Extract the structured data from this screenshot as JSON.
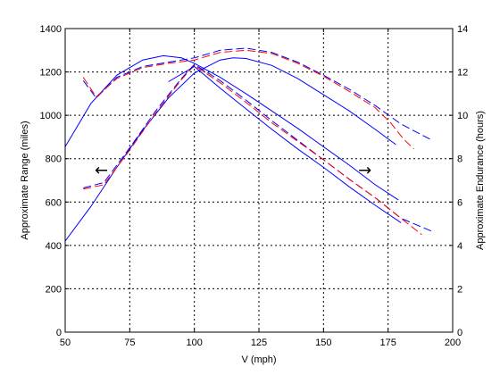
{
  "chart_data": {
    "type": "line",
    "title": "",
    "xlabel": "V (mph)",
    "ylabel_left": "Approximate Range (miles)",
    "ylabel_right": "Approximate Endurance (hours)",
    "xlim": [
      50,
      200
    ],
    "ylim_left": [
      0,
      1400
    ],
    "ylim_right": [
      0,
      14
    ],
    "x_ticks": [
      50,
      75,
      100,
      125,
      150,
      175,
      200
    ],
    "y_ticks_left": [
      0,
      200,
      400,
      600,
      800,
      1000,
      1200,
      1400
    ],
    "y_ticks_right": [
      0,
      2,
      4,
      6,
      8,
      10,
      12,
      14
    ],
    "grid": true,
    "colors": {
      "blue": "#0000ff",
      "red": "#ff0000",
      "axis": "#000000",
      "grid": "#000000"
    },
    "annotations": [
      {
        "text": "←",
        "points_to": "left axis (range)",
        "at": [
          64,
          740
        ]
      },
      {
        "text": "→",
        "points_to": "right axis (endurance)",
        "at": [
          166,
          740
        ]
      }
    ],
    "series": [
      {
        "axis": "left",
        "color": "#0000ff",
        "style": "solid",
        "x": [
          50,
          60,
          70,
          80,
          88,
          95,
          100,
          110,
          120,
          130,
          140,
          150,
          160,
          170,
          179
        ],
        "y": [
          855,
          1055,
          1185,
          1255,
          1275,
          1265,
          1240,
          1175,
          1100,
          1020,
          940,
          855,
          770,
          680,
          610
        ]
      },
      {
        "axis": "left",
        "color": "#0000ff",
        "style": "solid",
        "x": [
          50,
          60,
          70,
          80,
          90,
          100,
          110,
          115,
          120,
          130,
          140,
          150,
          160,
          170,
          178
        ],
        "y": [
          420,
          580,
          760,
          930,
          1080,
          1195,
          1255,
          1265,
          1262,
          1230,
          1170,
          1095,
          1020,
          935,
          865
        ]
      },
      {
        "axis": "left",
        "color": "#0000ff",
        "style": "dashed",
        "x": [
          57,
          62,
          70,
          80,
          90,
          100,
          110,
          120,
          130,
          140,
          150,
          160,
          170,
          180,
          192
        ],
        "y": [
          1160,
          1080,
          1175,
          1225,
          1245,
          1265,
          1300,
          1310,
          1290,
          1245,
          1185,
          1120,
          1045,
          960,
          885
        ]
      },
      {
        "axis": "left",
        "color": "#0000ff",
        "style": "dashed",
        "x": [
          57,
          65,
          75,
          85,
          95,
          100,
          110,
          120,
          130,
          140,
          150,
          160,
          170,
          180,
          192
        ],
        "y": [
          665,
          690,
          850,
          1020,
          1170,
          1235,
          1160,
          1070,
          975,
          885,
          795,
          705,
          620,
          525,
          465
        ]
      },
      {
        "axis": "left",
        "color": "#ff0000",
        "style": "dashed",
        "x": [
          57,
          62,
          70,
          80,
          90,
          100,
          110,
          120,
          130,
          140,
          150,
          160,
          170,
          176,
          181,
          185
        ],
        "y": [
          1175,
          1085,
          1170,
          1220,
          1240,
          1255,
          1290,
          1300,
          1285,
          1240,
          1180,
          1110,
          1035,
          965,
          890,
          845
        ]
      },
      {
        "axis": "left",
        "color": "#ff0000",
        "style": "dashed",
        "x": [
          57,
          65,
          75,
          85,
          95,
          100,
          110,
          120,
          130,
          140,
          150,
          160,
          170,
          180,
          188
        ],
        "y": [
          660,
          680,
          840,
          1010,
          1165,
          1230,
          1150,
          1060,
          965,
          880,
          795,
          705,
          620,
          525,
          450
        ]
      },
      {
        "axis": "left",
        "color": "#0000ff",
        "style": "solid",
        "x": [
          90,
          100,
          110,
          120,
          130,
          140,
          150,
          160,
          170,
          180
        ],
        "y": [
          1155,
          1225,
          1125,
          1030,
          935,
          845,
          760,
          670,
          585,
          505
        ]
      }
    ]
  }
}
